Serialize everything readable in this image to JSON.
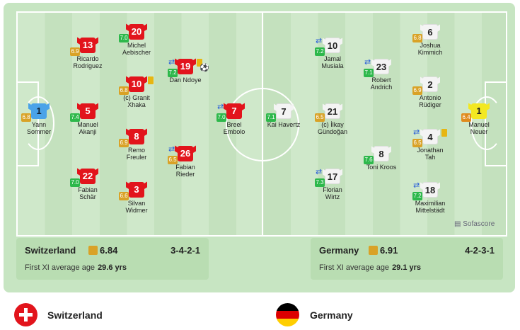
{
  "colors": {
    "home_shirt": "#e2141c",
    "away_shirt": "#f4f4f4",
    "home_gk": "#4aa3e8",
    "away_gk": "#f3e821"
  },
  "home": {
    "name": "Switzerland",
    "rating": "6.84",
    "formation": "3-4-2-1",
    "age_label": "First XI average age",
    "age": "29.6 yrs",
    "players": [
      {
        "num": "1",
        "rating": "6.8",
        "name": "Yann\nSommer"
      },
      {
        "num": "5",
        "rating": "7.4",
        "name": "Manuel\nAkanji"
      },
      {
        "num": "13",
        "rating": "6.9",
        "name": "Ricardo\nRodriguez"
      },
      {
        "num": "22",
        "rating": "7.0",
        "name": "Fabian\nSchär"
      },
      {
        "num": "20",
        "rating": "7.0",
        "name": "Michel\nAebischer"
      },
      {
        "num": "10",
        "rating": "6.8",
        "name": "(c) Granit\nXhaka"
      },
      {
        "num": "8",
        "rating": "6.9",
        "name": "Remo\nFreuler"
      },
      {
        "num": "3",
        "rating": "6.6",
        "name": "Silvan\nWidmer"
      },
      {
        "num": "19",
        "rating": "7.2",
        "name": "Dan Ndoye"
      },
      {
        "num": "26",
        "rating": "6.5",
        "name": "Fabian\nRieder"
      },
      {
        "num": "7",
        "rating": "7.0",
        "name": "Breel\nEmbolo"
      }
    ]
  },
  "away": {
    "name": "Germany",
    "rating": "6.91",
    "formation": "4-2-3-1",
    "age_label": "First XI average age",
    "age": "29.1 yrs",
    "players": [
      {
        "num": "1",
        "rating": "6.4",
        "name": "Manuel\nNeuer"
      },
      {
        "num": "6",
        "rating": "6.8",
        "name": "Joshua\nKimmich"
      },
      {
        "num": "2",
        "rating": "6.9",
        "name": "Antonio\nRüdiger"
      },
      {
        "num": "4",
        "rating": "6.5",
        "name": "Jonathan\nTah"
      },
      {
        "num": "18",
        "rating": "7.2",
        "name": "Maximilian\nMittelstädt"
      },
      {
        "num": "23",
        "rating": "7.1",
        "name": "Robert\nAndrich"
      },
      {
        "num": "8",
        "rating": "7.6",
        "name": "Toni Kroos"
      },
      {
        "num": "10",
        "rating": "7.2",
        "name": "Jamal\nMusiala"
      },
      {
        "num": "21",
        "rating": "6.5",
        "name": "(c) İlkay\nGündoğan"
      },
      {
        "num": "17",
        "rating": "7.3",
        "name": "Florian\nWirtz"
      },
      {
        "num": "7",
        "rating": "7.1",
        "name": "Kai Havertz"
      }
    ]
  },
  "branding": "Sofascore",
  "legend": {
    "home": "Switzerland",
    "away": "Germany"
  }
}
